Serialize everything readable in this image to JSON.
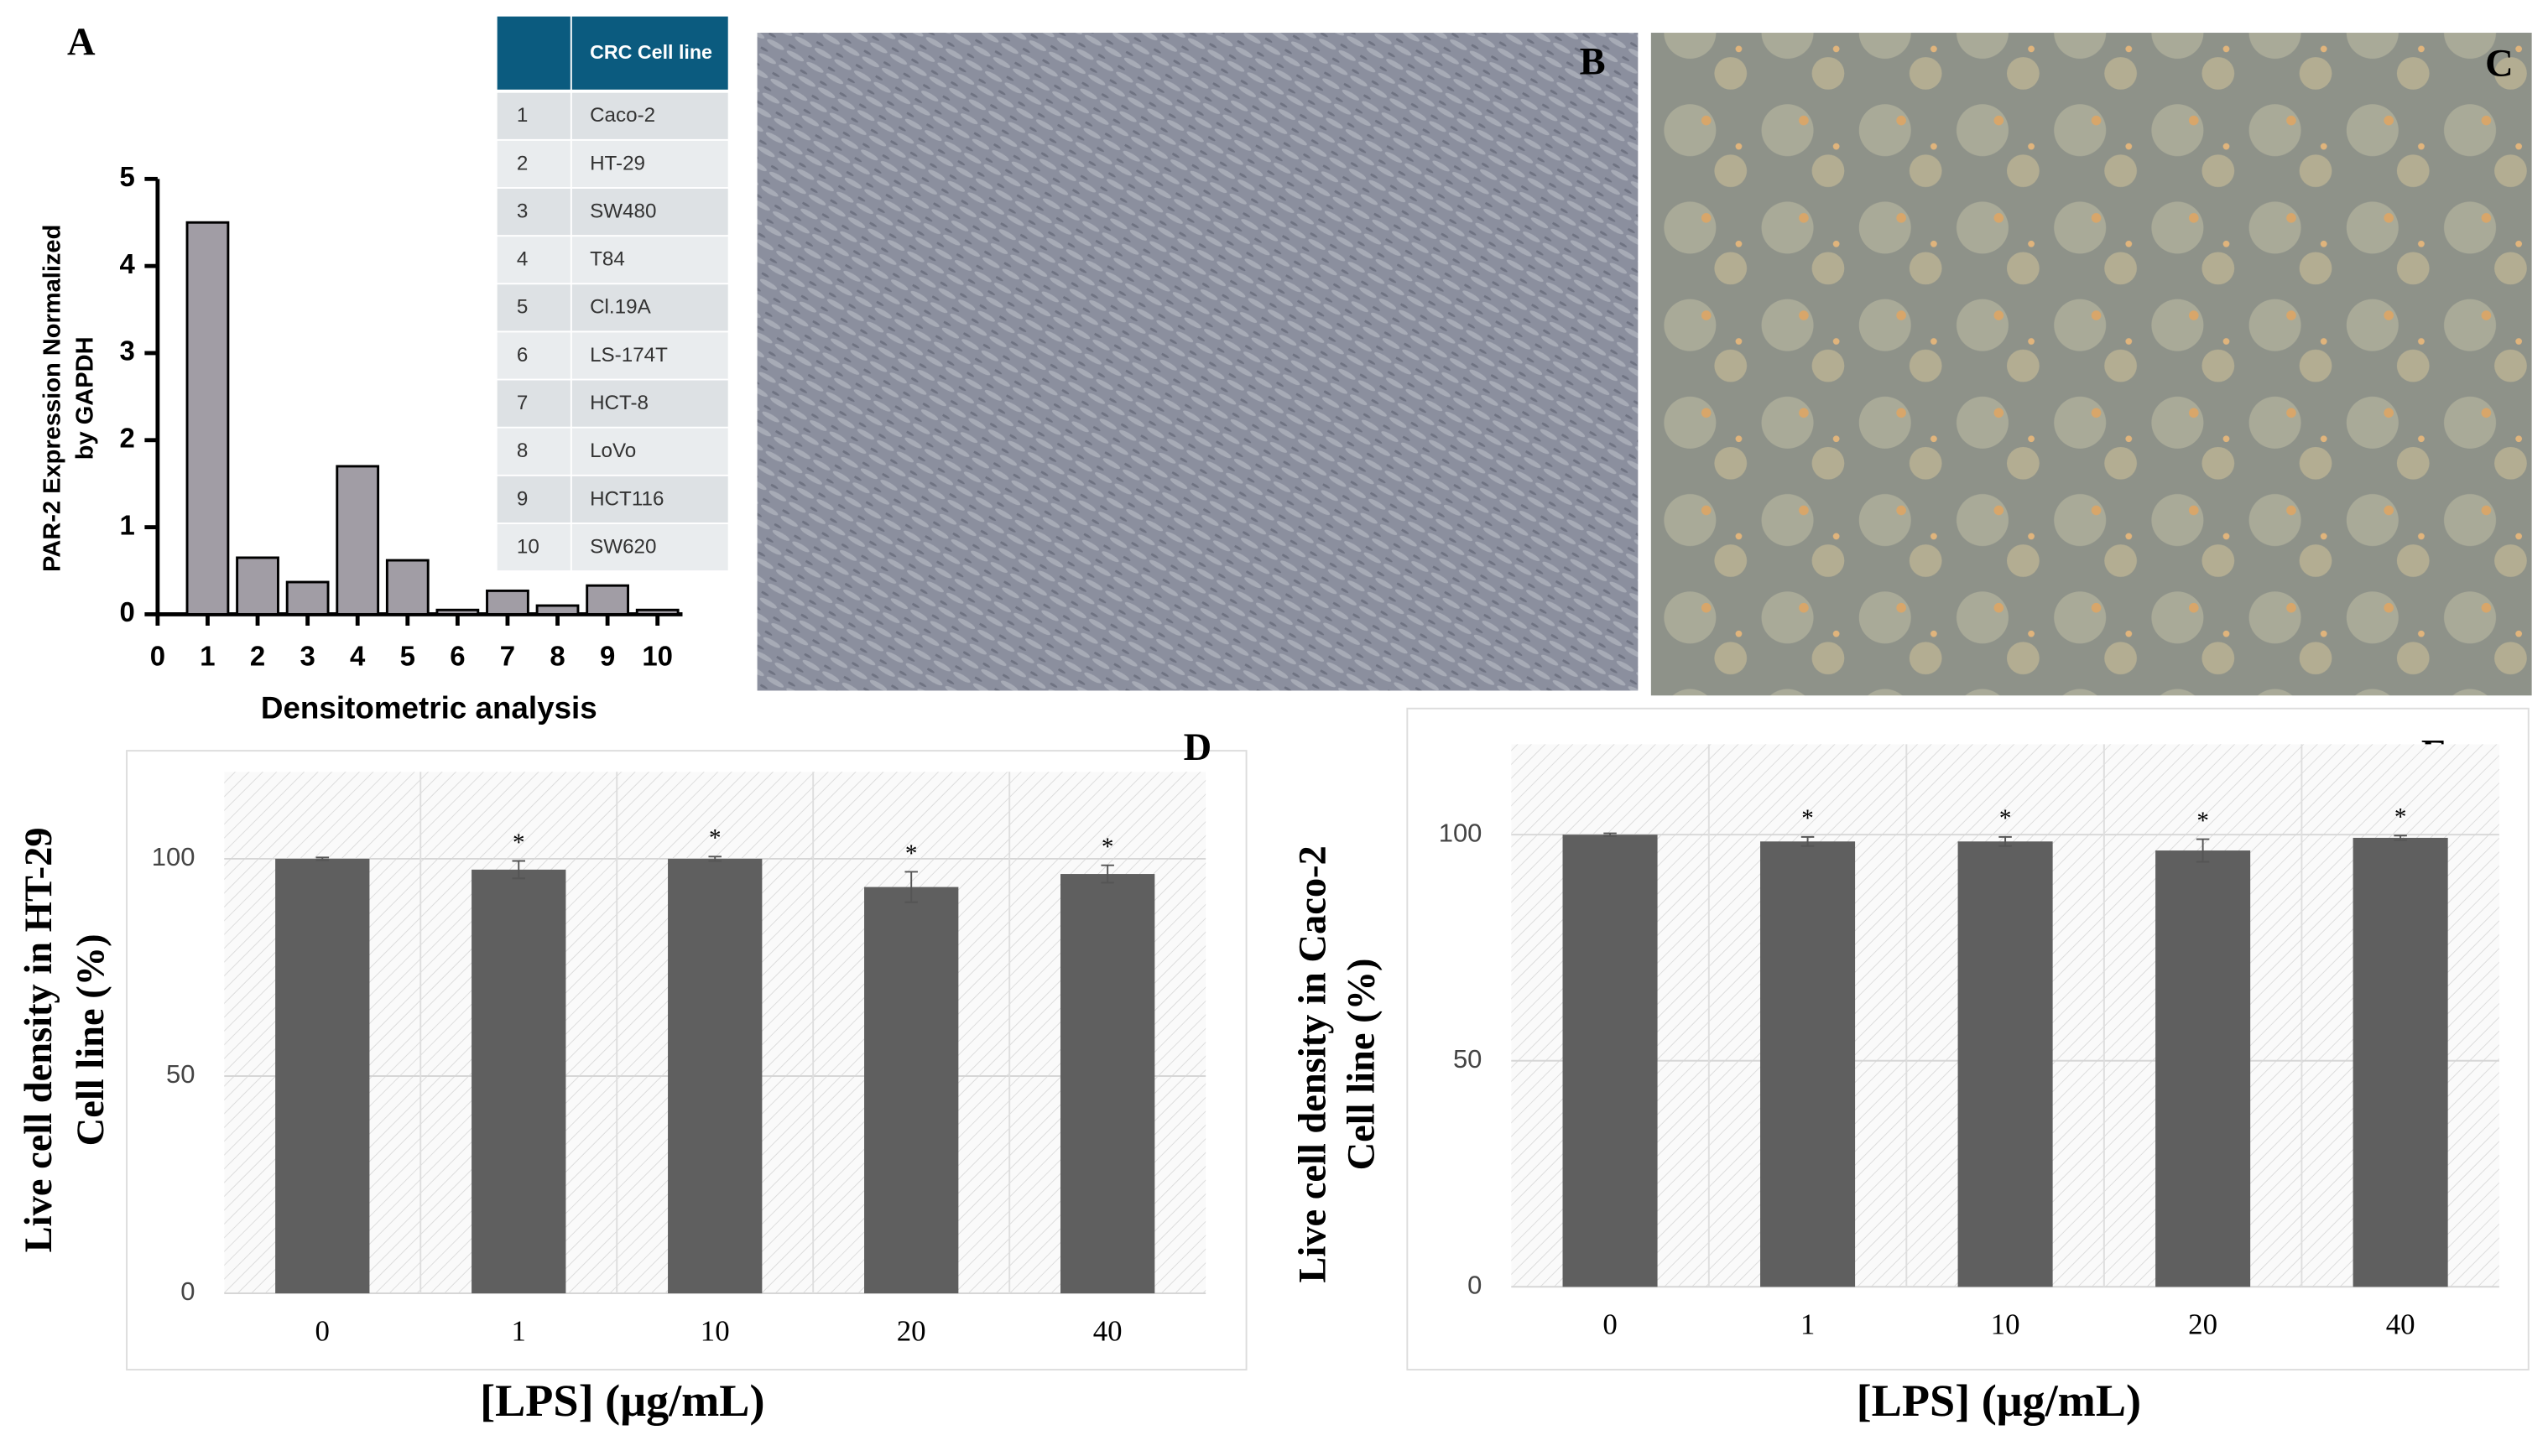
{
  "chart_data": [
    {
      "type": "bar",
      "panel": "A",
      "ylabel": [
        "PAR-2 Expression Normalized",
        "by GAPDH"
      ],
      "xlabel": "Densitometric analysis",
      "x": [
        1,
        2,
        3,
        4,
        5,
        6,
        7,
        8,
        9,
        10
      ],
      "values": [
        4.5,
        0.65,
        0.37,
        1.7,
        0.62,
        0.05,
        0.27,
        0.1,
        0.33,
        0.05
      ],
      "color": "#a19da5",
      "xlim": [
        0,
        10.5
      ],
      "xticks": [
        0,
        1,
        2,
        3,
        4,
        5,
        6,
        7,
        8,
        9,
        10
      ],
      "ylim": [
        0,
        5
      ],
      "yticks": [
        0,
        1,
        2,
        3,
        4,
        5
      ],
      "grid": false
    },
    {
      "type": "bar",
      "panel": "D",
      "ylabel": [
        "Live cell density in HT-29",
        "Cell line (%)"
      ],
      "xlabel": "[LPS] (μg/mL)",
      "categories": [
        "0",
        "1",
        "10",
        "20",
        "40"
      ],
      "values": [
        100,
        97.5,
        100,
        93.5,
        96.5
      ],
      "errors": [
        0.3,
        2,
        0.5,
        3.5,
        2
      ],
      "significance": [
        null,
        "*",
        "*",
        "*",
        "*"
      ],
      "color": "#5f5f5f",
      "ylim": [
        0,
        120
      ],
      "yticks": [
        0,
        50,
        100
      ],
      "grid": true
    },
    {
      "type": "bar",
      "panel": "E",
      "ylabel": [
        "Live cell density in Caco-2",
        "Cell line (%)"
      ],
      "xlabel": "[LPS] (μg/mL)",
      "categories": [
        "0",
        "1",
        "10",
        "20",
        "40"
      ],
      "values": [
        100,
        98.5,
        98.5,
        96.5,
        99.3
      ],
      "errors": [
        0.3,
        1,
        1,
        2.5,
        0.5
      ],
      "significance": [
        null,
        "*",
        "*",
        "*",
        "*"
      ],
      "color": "#5f5f5f",
      "ylim": [
        0,
        120
      ],
      "yticks": [
        0,
        50,
        100
      ],
      "grid": true
    }
  ],
  "table": {
    "header": "CRC Cell line",
    "rows": [
      [
        1,
        "Caco-2"
      ],
      [
        2,
        "HT-29"
      ],
      [
        3,
        "SW480"
      ],
      [
        4,
        "T84"
      ],
      [
        5,
        "Cl.19A"
      ],
      [
        6,
        "LS-174T"
      ],
      [
        7,
        "HCT-8"
      ],
      [
        8,
        "LoVo"
      ],
      [
        9,
        "HCT116"
      ],
      [
        10,
        "SW620"
      ]
    ]
  },
  "images": [
    {
      "label": "B"
    },
    {
      "label": "C"
    }
  ]
}
